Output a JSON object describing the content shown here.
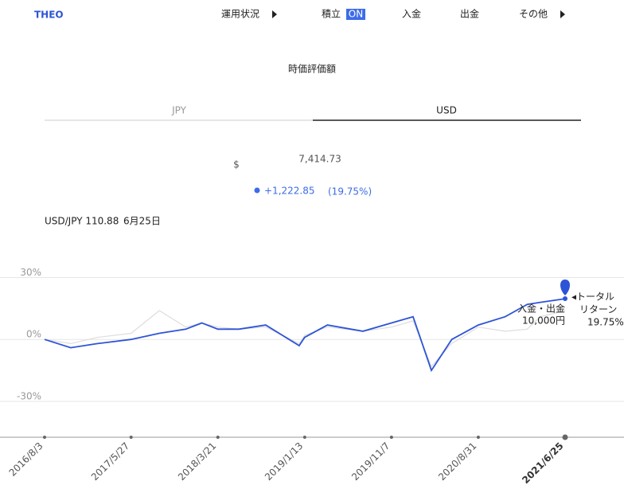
{
  "header": {
    "logo": "THEO",
    "nav": [
      "運用状況",
      "積立",
      "入金",
      "出金",
      "その他"
    ],
    "toggle": "ON"
  },
  "summary": {
    "title": "時価評価額",
    "tabs": [
      "JPY",
      "USD"
    ],
    "currency": "$",
    "value": "7,414.73",
    "change": "+1,222.85",
    "change_pct": "(19.75%)",
    "fx": "USD/JPY 110.88",
    "fx_date": "6月25日"
  },
  "chart_data": {
    "type": "line",
    "x": [
      "2016/8/3",
      "2016/11/1",
      "2017/2/1",
      "2017/5/27",
      "2017/9/1",
      "2017/12/1",
      "2018/1/25",
      "2018/3/21",
      "2018/6/1",
      "2018/9/1",
      "2018/12/25",
      "2019/1/13",
      "2019/4/1",
      "2019/8/1",
      "2019/11/7",
      "2020/1/20",
      "2020/3/23",
      "2020/6/1",
      "2020/8/31",
      "2020/12/1",
      "2021/2/15",
      "2021/4/1",
      "2021/6/25"
    ],
    "series": [
      {
        "color": "#dddddd",
        "values": [
          0,
          -2,
          1,
          3,
          14,
          6,
          8,
          6,
          5,
          6,
          -2,
          2,
          6,
          4,
          6,
          9,
          -13,
          -2,
          6,
          4,
          5,
          11,
          14
        ]
      },
      {
        "color": "#2d54d6",
        "values": [
          0,
          -4,
          -2,
          0,
          3,
          5,
          8,
          5,
          5,
          7,
          -3,
          1,
          7,
          4,
          8,
          11,
          -15,
          0,
          7,
          11,
          17,
          18,
          19.75
        ]
      }
    ],
    "xlim": [
      "2016/8/3",
      "2021/6/25"
    ],
    "xticks": [
      "2016/8/3",
      "2017/5/27",
      "2018/3/21",
      "2019/1/13",
      "2019/11/7",
      "2020/8/31",
      "2021/6/25"
    ],
    "ylim": [
      -47,
      41
    ],
    "yticks": [
      {
        "value": 30,
        "label": "30%"
      },
      {
        "value": 0,
        "label": "0%"
      },
      {
        "value": -30,
        "label": "-30%"
      }
    ],
    "grid": true,
    "annotations": [
      "◂トータル",
      "リターン",
      "19.75%",
      "入金・出金",
      "10,000円"
    ]
  }
}
